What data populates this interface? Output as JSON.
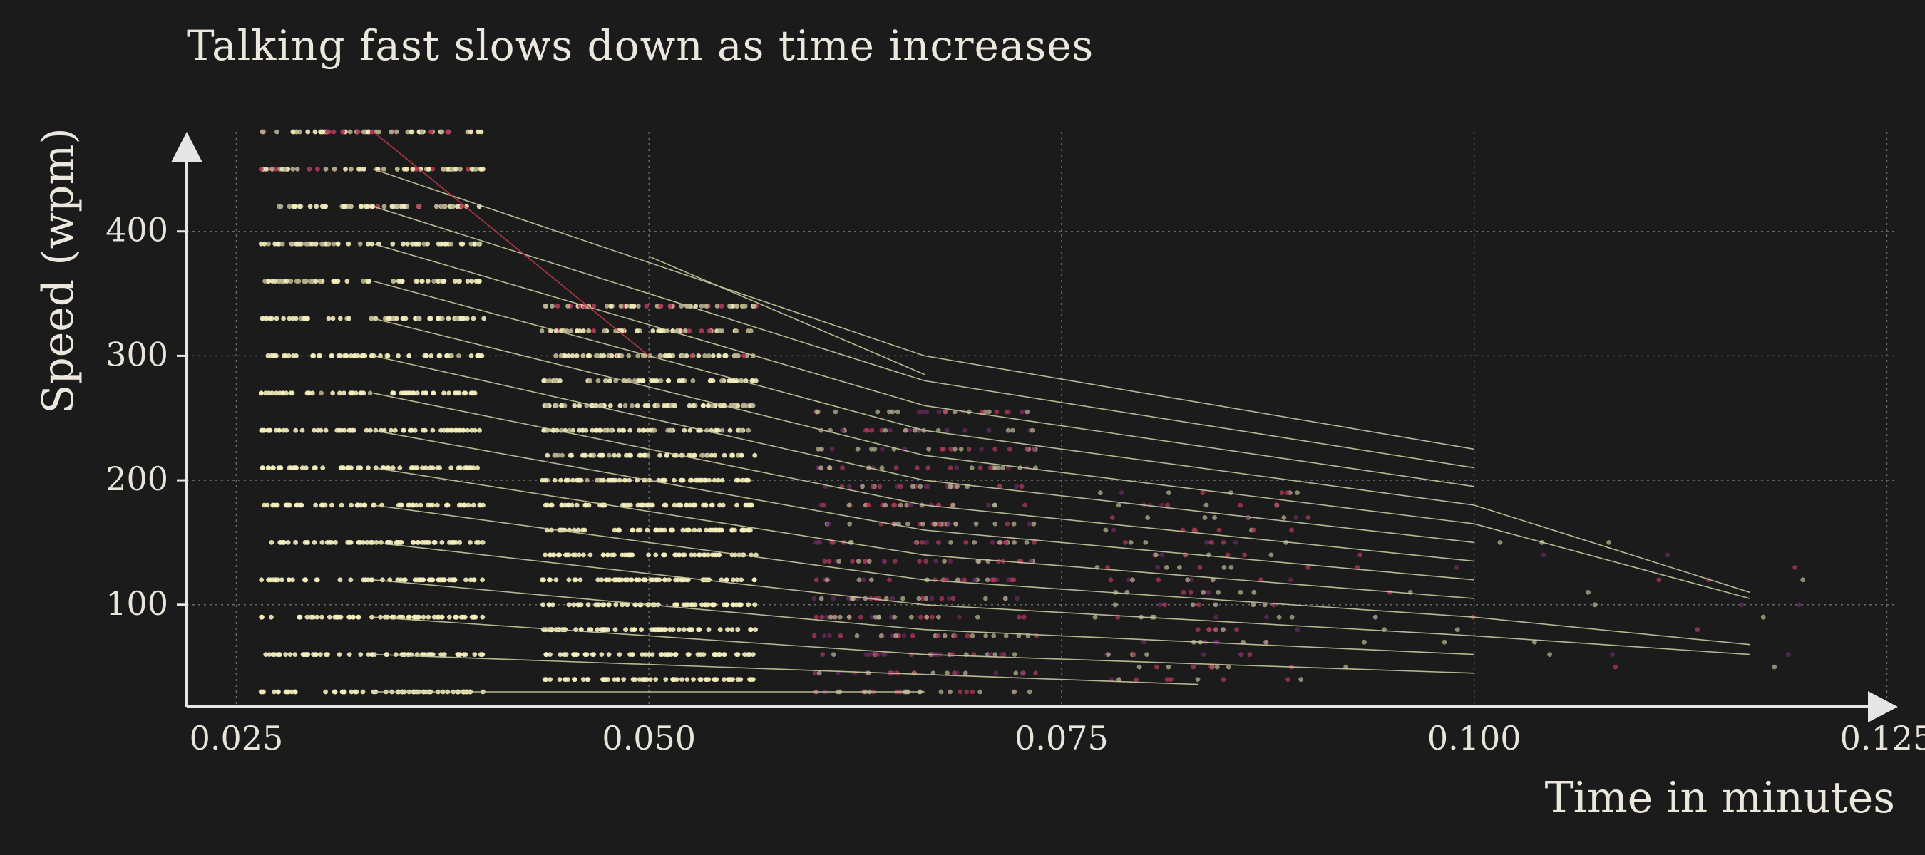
{
  "chart_data": {
    "type": "scatter",
    "title": "Talking fast slows down as time increases",
    "xlabel": "Time in minutes",
    "ylabel": "Speed (wpm)",
    "xlim": [
      0.022,
      0.1255
    ],
    "ylim": [
      18,
      480
    ],
    "x_ticks": [
      0.025,
      0.05,
      0.075,
      0.1,
      0.125
    ],
    "x_tick_labels": [
      "0.025",
      "0.050",
      "0.075",
      "0.100",
      "0.125"
    ],
    "y_ticks": [
      100,
      200,
      300,
      400
    ],
    "y_tick_labels": [
      "100",
      "200",
      "300",
      "400"
    ],
    "grid": true,
    "grid_style": "dotted",
    "colors": {
      "background": "#1b1b1b",
      "text": "#e8e4da",
      "grid": "#6a6a6a",
      "trend_line": "#c9c9a0",
      "trend_line_highlight": "#c23a4a",
      "dense_points": "#f4eebc",
      "mid_points": "#b7b08f",
      "accent_points": "#b03a5a",
      "purple_points": "#6a2a62"
    },
    "point_bands": [
      {
        "x_range": [
          0.0265,
          0.04
        ],
        "y_values": [
          30,
          60,
          90,
          120,
          150,
          180,
          210,
          240,
          270,
          300,
          330,
          360,
          390,
          420,
          450,
          480
        ],
        "density": "high"
      },
      {
        "x_range": [
          0.0435,
          0.0565
        ],
        "y_values": [
          40,
          60,
          80,
          100,
          120,
          140,
          160,
          180,
          200,
          220,
          240,
          260,
          280,
          300,
          320,
          340
        ],
        "density": "high"
      },
      {
        "x_range": [
          0.06,
          0.0735
        ],
        "y_values": [
          30,
          45,
          60,
          75,
          90,
          105,
          120,
          135,
          150,
          165,
          180,
          195,
          210,
          225,
          240,
          255
        ],
        "density": "medium"
      },
      {
        "x_range": [
          0.077,
          0.09
        ],
        "y_values": [
          40,
          50,
          60,
          70,
          80,
          90,
          100,
          110,
          120,
          130,
          140,
          150,
          160,
          170,
          180,
          190
        ],
        "density": "low"
      },
      {
        "x_range": [
          0.092,
          0.123
        ],
        "y_values": [
          50,
          60,
          70,
          80,
          90,
          100,
          110,
          120,
          130,
          140,
          150
        ],
        "density": "sparse"
      }
    ],
    "series": [
      {
        "x": [
          0.0333,
          0.0667
        ],
        "y": [
          30,
          30
        ]
      },
      {
        "x": [
          0.0333,
          0.0833
        ],
        "y": [
          60,
          36
        ]
      },
      {
        "x": [
          0.0333,
          0.0667,
          0.1
        ],
        "y": [
          90,
          60,
          45
        ]
      },
      {
        "x": [
          0.0333,
          0.0667,
          0.1
        ],
        "y": [
          120,
          80,
          60
        ]
      },
      {
        "x": [
          0.0333,
          0.0667,
          0.1,
          0.1167
        ],
        "y": [
          150,
          100,
          75,
          60
        ]
      },
      {
        "x": [
          0.0333,
          0.0667,
          0.1,
          0.1167
        ],
        "y": [
          180,
          120,
          90,
          68
        ]
      },
      {
        "x": [
          0.0333,
          0.0667,
          0.1
        ],
        "y": [
          210,
          140,
          105
        ]
      },
      {
        "x": [
          0.0333,
          0.0667,
          0.1
        ],
        "y": [
          240,
          160,
          120
        ]
      },
      {
        "x": [
          0.0333,
          0.0667,
          0.1
        ],
        "y": [
          270,
          180,
          135
        ]
      },
      {
        "x": [
          0.0333,
          0.0667,
          0.1
        ],
        "y": [
          300,
          200,
          150
        ]
      },
      {
        "x": [
          0.0333,
          0.0667,
          0.1,
          0.1167
        ],
        "y": [
          330,
          220,
          165,
          105
        ]
      },
      {
        "x": [
          0.0333,
          0.0667,
          0.1,
          0.1167
        ],
        "y": [
          360,
          240,
          180,
          110
        ]
      },
      {
        "x": [
          0.0333,
          0.0667,
          0.1
        ],
        "y": [
          390,
          260,
          195
        ]
      },
      {
        "x": [
          0.0333,
          0.0667,
          0.1
        ],
        "y": [
          420,
          280,
          210
        ]
      },
      {
        "x": [
          0.0333,
          0.0667,
          0.1
        ],
        "y": [
          450,
          300,
          225
        ]
      },
      {
        "x": [
          0.05,
          0.0667
        ],
        "y": [
          380,
          285
        ]
      },
      {
        "x": [
          0.0333,
          0.05
        ],
        "y": [
          480,
          300
        ],
        "highlight": true
      }
    ]
  }
}
